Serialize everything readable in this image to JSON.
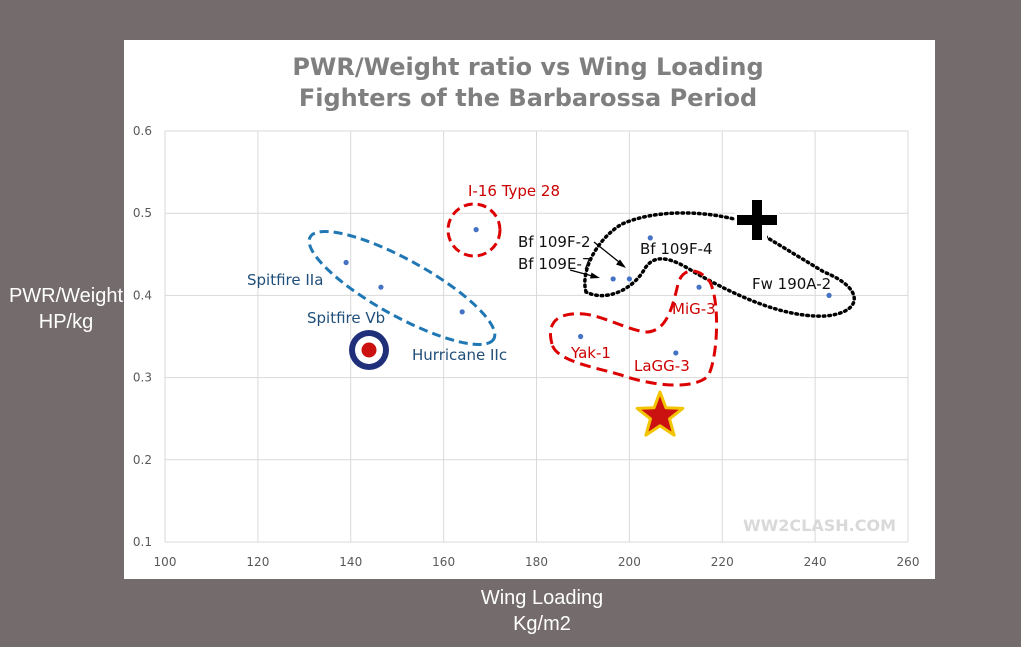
{
  "chart_data": {
    "type": "scatter",
    "title": "PWR/Weight ratio vs Wing Loading",
    "subtitle": "Fighters of the Barbarossa Period",
    "xlabel": [
      "Wing Loading",
      "Kg/m2"
    ],
    "ylabel": [
      "PWR/Weight",
      "HP/kg"
    ],
    "xlim": [
      100,
      260
    ],
    "ylim": [
      0.1,
      0.6
    ],
    "xticks": [
      100,
      120,
      140,
      160,
      180,
      200,
      220,
      240,
      260
    ],
    "yticks": [
      0.1,
      0.2,
      0.3,
      0.4,
      0.5,
      0.6
    ],
    "xtick_labels": [
      "100",
      "120",
      "140",
      "160",
      "180",
      "200",
      "220",
      "240",
      "260"
    ],
    "ytick_labels": [
      "0.1",
      "0.2",
      "0.3",
      "0.4",
      "0.5",
      "0.6"
    ],
    "grid": true,
    "point_color": "#4472c4",
    "points": [
      {
        "label": "Spitfire IIa",
        "x": 139,
        "y": 0.44
      },
      {
        "label": "Spitfire Vb",
        "x": 146.5,
        "y": 0.41
      },
      {
        "label": "Hurricane IIc",
        "x": 164,
        "y": 0.38
      },
      {
        "label": "I-16 Type 28",
        "x": 167,
        "y": 0.48
      },
      {
        "label": "Bf 109E-7",
        "x": 196.5,
        "y": 0.42
      },
      {
        "label": "Bf 109F-2",
        "x": 200,
        "y": 0.42
      },
      {
        "label": "Bf 109F-4",
        "x": 204.5,
        "y": 0.47
      },
      {
        "label": "MiG-3",
        "x": 215,
        "y": 0.41
      },
      {
        "label": "Yak-1",
        "x": 189.5,
        "y": 0.35
      },
      {
        "label": "LaGG-3",
        "x": 210,
        "y": 0.33
      },
      {
        "label": "Fw 190A-2",
        "x": 243,
        "y": 0.4
      }
    ],
    "annotations": [
      {
        "text": "I-16 Type 28",
        "color": "#cc0000"
      },
      {
        "text": "Spitfire IIa",
        "color": "#1f4e79"
      },
      {
        "text": "Spitfire Vb",
        "color": "#1f4e79"
      },
      {
        "text": "Hurricane IIc",
        "color": "#1f4e79"
      },
      {
        "text": "Bf 109F-2",
        "color": "#111111"
      },
      {
        "text": "Bf 109E-7",
        "color": "#111111"
      },
      {
        "text": "Bf 109F-4",
        "color": "#111111"
      },
      {
        "text": "Fw 190A-2",
        "color": "#111111"
      },
      {
        "text": "MiG-3",
        "color": "#cc0000"
      },
      {
        "text": "Yak-1",
        "color": "#cc0000"
      },
      {
        "text": "LaGG-3",
        "color": "#cc0000"
      }
    ],
    "watermark": "WW2CLASH.COM",
    "group_colors": {
      "british": "#1f77b4",
      "soviet": "#dd0000",
      "german": "#000000"
    }
  }
}
